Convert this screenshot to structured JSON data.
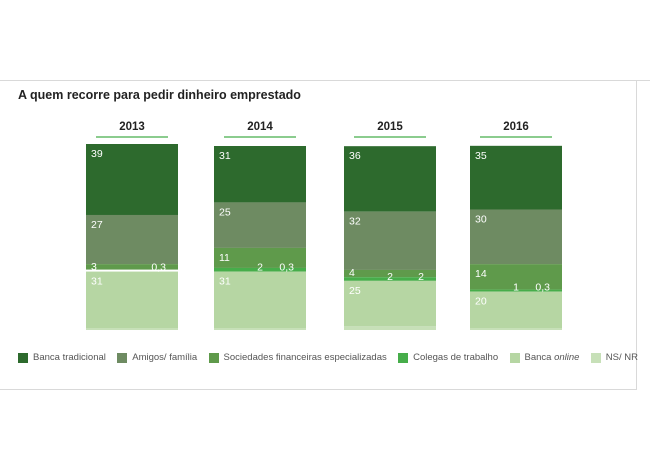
{
  "chart_data": {
    "type": "bar",
    "stacked": true,
    "title": "A quem recorre para pedir dinheiro emprestado",
    "categories": [
      "2013",
      "2014",
      "2015",
      "2016"
    ],
    "series": [
      {
        "name": "Banca tradicional",
        "color": "#2d6a2d",
        "values": [
          39,
          31,
          36,
          35
        ],
        "labels": [
          "39",
          "31",
          "36",
          "35"
        ]
      },
      {
        "name": "Amigos/ família",
        "color": "#6e8b62",
        "values": [
          27,
          25,
          32,
          30
        ],
        "labels": [
          "27",
          "25",
          "32",
          "30"
        ]
      },
      {
        "name": "Sociedades financeiras especializadas",
        "color": "#5f9a4b",
        "values": [
          3,
          11,
          4,
          14
        ],
        "labels": [
          "3",
          "11",
          "4",
          "14"
        ]
      },
      {
        "name": "Colegas de trabalho",
        "color": "#46ad4a",
        "values": [
          0,
          2,
          2,
          1
        ],
        "labels": [
          "",
          "2",
          "2",
          "1"
        ]
      },
      {
        "name": "Banca online",
        "color": "#b6d6a3",
        "values": [
          31,
          31,
          25,
          20
        ],
        "labels": [
          "31",
          "31",
          "25",
          "20"
        ]
      },
      {
        "name": "NS/ NR",
        "color": "#c7e0b8",
        "values": [
          0.3,
          0.3,
          2,
          0.3
        ],
        "labels": [
          "0,3",
          "0,3",
          "2",
          "0,3"
        ]
      }
    ]
  },
  "legend": {
    "items": [
      {
        "text": "Banca tradicional",
        "italic": "",
        "color": "#2d6a2d"
      },
      {
        "text": "Amigos/ família",
        "italic": "",
        "color": "#6e8b62"
      },
      {
        "text": "Sociedades financeiras especializadas",
        "italic": "",
        "color": "#5f9a4b"
      },
      {
        "text": "Colegas de trabalho",
        "italic": "",
        "color": "#46ad4a"
      },
      {
        "text": "Banca ",
        "italic": "online",
        "color": "#b6d6a3"
      },
      {
        "text": "NS/ NR",
        "italic": "",
        "color": "#c7e0b8"
      }
    ]
  }
}
